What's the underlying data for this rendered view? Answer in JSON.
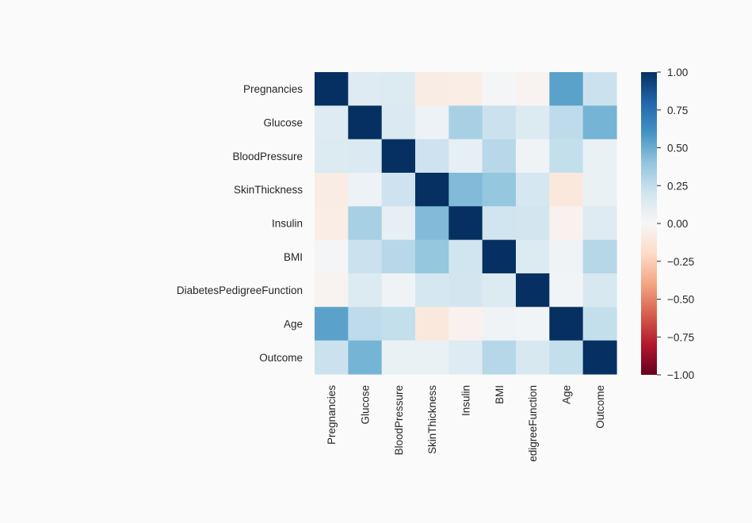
{
  "chart_data": {
    "type": "heatmap",
    "title": "",
    "xlabel": "",
    "ylabel": "",
    "row_labels": [
      "Pregnancies",
      "Glucose",
      "BloodPressure",
      "SkinThickness",
      "Insulin",
      "BMI",
      "DiabetesPedigreeFunction",
      "Age",
      "Outcome"
    ],
    "col_labels": [
      "Pregnancies",
      "Glucose",
      "BloodPressure",
      "SkinThickness",
      "Insulin",
      "BMI",
      "DiabetesPedigreeFunction",
      "Age",
      "Outcome"
    ],
    "values": [
      [
        1.0,
        0.13,
        0.14,
        -0.08,
        -0.07,
        0.02,
        -0.03,
        0.54,
        0.22
      ],
      [
        0.13,
        1.0,
        0.15,
        0.06,
        0.33,
        0.22,
        0.14,
        0.26,
        0.47
      ],
      [
        0.14,
        0.15,
        1.0,
        0.21,
        0.09,
        0.28,
        0.04,
        0.24,
        0.07
      ],
      [
        -0.08,
        0.06,
        0.21,
        1.0,
        0.44,
        0.39,
        0.18,
        -0.11,
        0.07
      ],
      [
        -0.07,
        0.33,
        0.09,
        0.44,
        1.0,
        0.2,
        0.19,
        -0.04,
        0.13
      ],
      [
        0.02,
        0.22,
        0.28,
        0.39,
        0.2,
        1.0,
        0.14,
        0.04,
        0.29
      ],
      [
        -0.03,
        0.14,
        0.04,
        0.18,
        0.19,
        0.14,
        1.0,
        0.03,
        0.17
      ],
      [
        0.54,
        0.26,
        0.24,
        -0.11,
        -0.04,
        0.04,
        0.03,
        1.0,
        0.24
      ],
      [
        0.22,
        0.47,
        0.07,
        0.07,
        0.13,
        0.29,
        0.17,
        0.24,
        1.0
      ]
    ],
    "colorscale": "RdBu",
    "vmin": -1.0,
    "vmax": 1.0,
    "colorbar_ticks": [
      "1.00",
      "0.75",
      "0.50",
      "0.25",
      "0.00",
      "−0.25",
      "−0.50",
      "−0.75",
      "−1.00"
    ],
    "colorbar_tick_values": [
      1.0,
      0.75,
      0.5,
      0.25,
      0.0,
      -0.25,
      -0.5,
      -0.75,
      -1.0
    ],
    "visible_col_label_text": {
      "6": "edigreeFunction"
    }
  }
}
